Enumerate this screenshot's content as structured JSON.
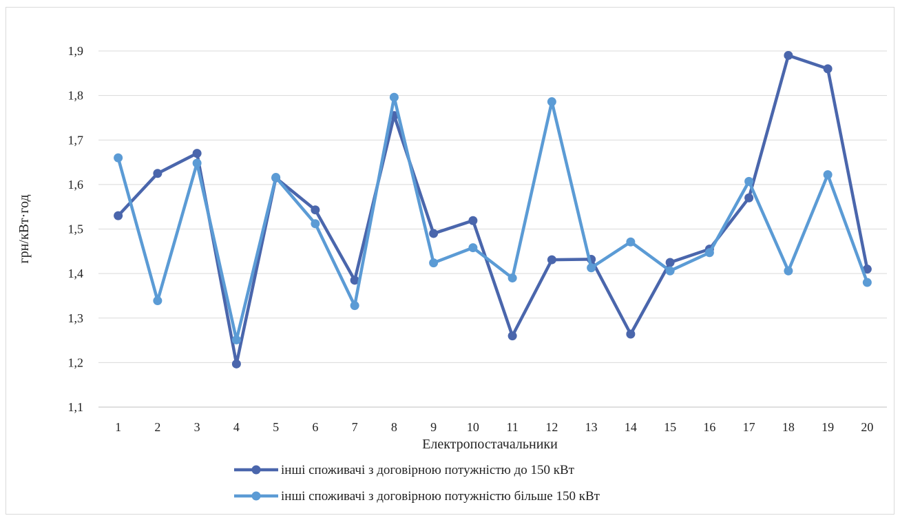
{
  "chart_data": {
    "type": "line",
    "categories": [
      "1",
      "2",
      "3",
      "4",
      "5",
      "6",
      "7",
      "8",
      "9",
      "10",
      "11",
      "12",
      "13",
      "14",
      "15",
      "16",
      "17",
      "18",
      "19",
      "20"
    ],
    "series": [
      {
        "name": "інші споживачі з договірною потужністю до 150 кВт",
        "color": "#4a66ac",
        "values": [
          1.53,
          1.625,
          1.67,
          1.197,
          1.615,
          1.543,
          1.385,
          1.755,
          1.49,
          1.519,
          1.26,
          1.431,
          1.432,
          1.264,
          1.425,
          1.455,
          1.57,
          1.89,
          1.86,
          1.41
        ]
      },
      {
        "name": "інші споживачі з договірною потужністю більше 150 кВт",
        "color": "#5b9bd5",
        "values": [
          1.66,
          1.339,
          1.648,
          1.251,
          1.616,
          1.512,
          1.328,
          1.796,
          1.424,
          1.458,
          1.39,
          1.786,
          1.413,
          1.471,
          1.406,
          1.447,
          1.607,
          1.406,
          1.622,
          1.38
        ]
      }
    ],
    "title": "",
    "xlabel": "Електропостачальники",
    "ylabel": "грн/кВт·год",
    "ylim": [
      1.1,
      1.9
    ],
    "yticks": [
      "1,1",
      "1,2",
      "1,3",
      "1,4",
      "1,5",
      "1,6",
      "1,7",
      "1,8",
      "1,9"
    ],
    "grid": true,
    "legend": "bottom"
  }
}
